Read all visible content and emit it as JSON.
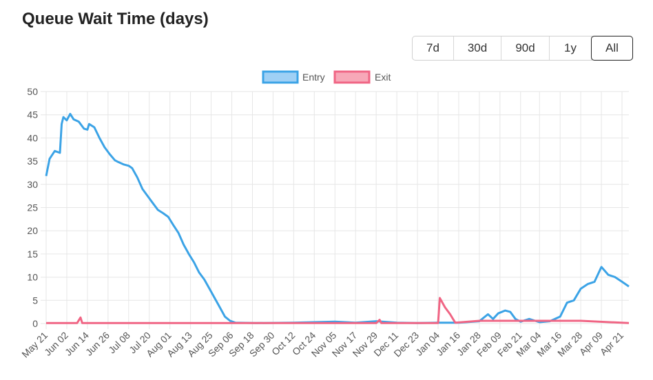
{
  "page": {
    "title": "Queue Wait Time (days)"
  },
  "range_buttons": [
    {
      "label": "7d",
      "active": false
    },
    {
      "label": "30d",
      "active": false
    },
    {
      "label": "90d",
      "active": false
    },
    {
      "label": "1y",
      "active": false
    },
    {
      "label": "All",
      "active": true
    }
  ],
  "colors": {
    "entry_line": "#3ba3e6",
    "entry_fill": "#9fd0f5",
    "exit_line": "#f06584",
    "exit_fill": "#f7a8b8",
    "grid": "#e6e6e6"
  },
  "chart_data": {
    "type": "line",
    "title": "",
    "ylim": [
      0,
      50
    ],
    "yticks": [
      0,
      5,
      10,
      15,
      20,
      25,
      30,
      35,
      40,
      45,
      50
    ],
    "legend_position": "top-center",
    "grid": true,
    "x_tick_labels": [
      "May 21",
      "Jun 02",
      "Jun 14",
      "Jun 26",
      "Jul 08",
      "Jul 20",
      "Aug 01",
      "Aug 13",
      "Aug 25",
      "Sep 06",
      "Sep 18",
      "Sep 30",
      "Oct 12",
      "Oct 24",
      "Nov 05",
      "Nov 17",
      "Nov 29",
      "Dec 11",
      "Dec 23",
      "Jan 04",
      "Jan 16",
      "Jan 28",
      "Feb 09",
      "Feb 21",
      "Mar 04",
      "Mar 16",
      "Mar 28",
      "Apr 09",
      "Apr 21"
    ],
    "series": [
      {
        "name": "Entry",
        "points": [
          [
            "May 21",
            31.8
          ],
          [
            "May 23",
            35.5
          ],
          [
            "May 26",
            37.2
          ],
          [
            "May 29",
            36.8
          ],
          [
            "May 30",
            43.0
          ],
          [
            "May 31",
            44.5
          ],
          [
            "Jun 02",
            43.8
          ],
          [
            "Jun 04",
            45.2
          ],
          [
            "Jun 06",
            44.0
          ],
          [
            "Jun 09",
            43.5
          ],
          [
            "Jun 12",
            42.0
          ],
          [
            "Jun 14",
            41.8
          ],
          [
            "Jun 15",
            43.0
          ],
          [
            "Jun 18",
            42.3
          ],
          [
            "Jun 21",
            40.0
          ],
          [
            "Jun 24",
            38.0
          ],
          [
            "Jun 27",
            36.5
          ],
          [
            "Jun 30",
            35.2
          ],
          [
            "Jul 02",
            34.8
          ],
          [
            "Jul 05",
            34.3
          ],
          [
            "Jul 08",
            34.0
          ],
          [
            "Jul 10",
            33.5
          ],
          [
            "Jul 13",
            31.5
          ],
          [
            "Jul 16",
            29.0
          ],
          [
            "Jul 19",
            27.5
          ],
          [
            "Jul 22",
            26.0
          ],
          [
            "Jul 25",
            24.5
          ],
          [
            "Jul 28",
            23.8
          ],
          [
            "Jul 31",
            23.0
          ],
          [
            "Aug 03",
            21.2
          ],
          [
            "Aug 06",
            19.5
          ],
          [
            "Aug 09",
            17.0
          ],
          [
            "Aug 12",
            15.0
          ],
          [
            "Aug 15",
            13.2
          ],
          [
            "Aug 18",
            11.0
          ],
          [
            "Aug 21",
            9.5
          ],
          [
            "Aug 24",
            7.5
          ],
          [
            "Aug 27",
            5.5
          ],
          [
            "Aug 30",
            3.5
          ],
          [
            "Sep 02",
            1.5
          ],
          [
            "Sep 05",
            0.6
          ],
          [
            "Sep 08",
            0.2
          ],
          [
            "Sep 20",
            0.1
          ],
          [
            "Oct 12",
            0.2
          ],
          [
            "Oct 24",
            0.3
          ],
          [
            "Nov 05",
            0.4
          ],
          [
            "Nov 17",
            0.2
          ],
          [
            "Nov 29",
            0.5
          ],
          [
            "Dec 11",
            0.2
          ],
          [
            "Dec 23",
            0.1
          ],
          [
            "Jan 04",
            0.2
          ],
          [
            "Jan 16",
            0.2
          ],
          [
            "Jan 28",
            0.5
          ],
          [
            "Feb 02",
            2.0
          ],
          [
            "Feb 05",
            1.0
          ],
          [
            "Feb 08",
            2.2
          ],
          [
            "Feb 12",
            2.8
          ],
          [
            "Feb 15",
            2.5
          ],
          [
            "Feb 18",
            1.0
          ],
          [
            "Feb 21",
            0.4
          ],
          [
            "Feb 26",
            1.0
          ],
          [
            "Mar 04",
            0.3
          ],
          [
            "Mar 10",
            0.5
          ],
          [
            "Mar 16",
            1.5
          ],
          [
            "Mar 20",
            4.5
          ],
          [
            "Mar 24",
            5.0
          ],
          [
            "Mar 28",
            7.5
          ],
          [
            "Apr 01",
            8.5
          ],
          [
            "Apr 05",
            9.0
          ],
          [
            "Apr 09",
            12.2
          ],
          [
            "Apr 13",
            10.5
          ],
          [
            "Apr 17",
            10.0
          ],
          [
            "Apr 21",
            9.0
          ],
          [
            "Apr 25",
            8.0
          ]
        ]
      },
      {
        "name": "Exit",
        "points": [
          [
            "May 21",
            0.1
          ],
          [
            "Jun 08",
            0.1
          ],
          [
            "Jun 10",
            1.3
          ],
          [
            "Jun 11",
            0.1
          ],
          [
            "Nov 29",
            0.1
          ],
          [
            "Dec 01",
            0.8
          ],
          [
            "Dec 02",
            0.1
          ],
          [
            "Jan 04",
            0.1
          ],
          [
            "Jan 05",
            5.5
          ],
          [
            "Jan 08",
            3.5
          ],
          [
            "Jan 11",
            2.0
          ],
          [
            "Jan 14",
            0.2
          ],
          [
            "Jan 28",
            0.6
          ],
          [
            "Feb 09",
            0.6
          ],
          [
            "Feb 21",
            0.6
          ],
          [
            "Mar 16",
            0.6
          ],
          [
            "Mar 28",
            0.6
          ],
          [
            "Apr 25",
            0.1
          ]
        ]
      }
    ]
  }
}
